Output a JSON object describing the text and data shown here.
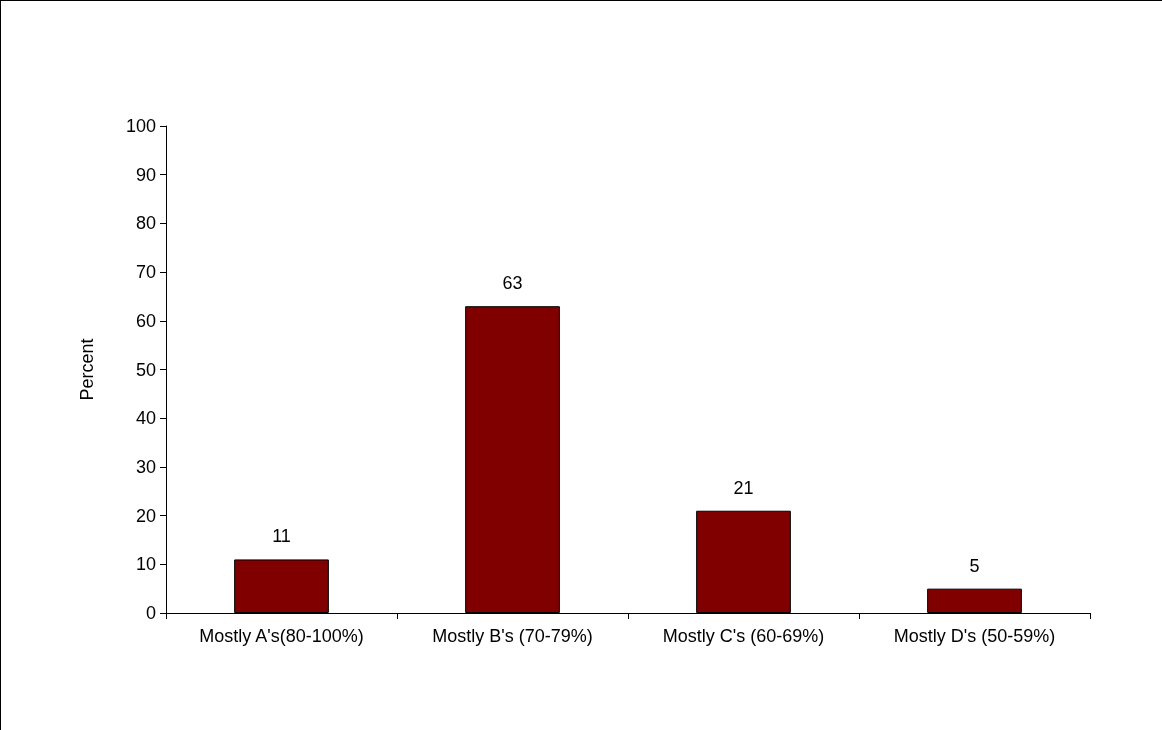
{
  "chart_data": {
    "type": "bar",
    "ylabel": "Percent",
    "categories": [
      "Mostly A's(80-100%)",
      "Mostly B's (70-79%)",
      "Mostly C's (60-69%)",
      "Mostly D's (50-59%)"
    ],
    "values": [
      11,
      63,
      21,
      5
    ],
    "color": "#800000",
    "ylim": [
      0,
      100
    ],
    "yticks": [
      0,
      10,
      20,
      30,
      40,
      50,
      60,
      70,
      80,
      90,
      100
    ],
    "grid": false,
    "data_labels": true
  }
}
